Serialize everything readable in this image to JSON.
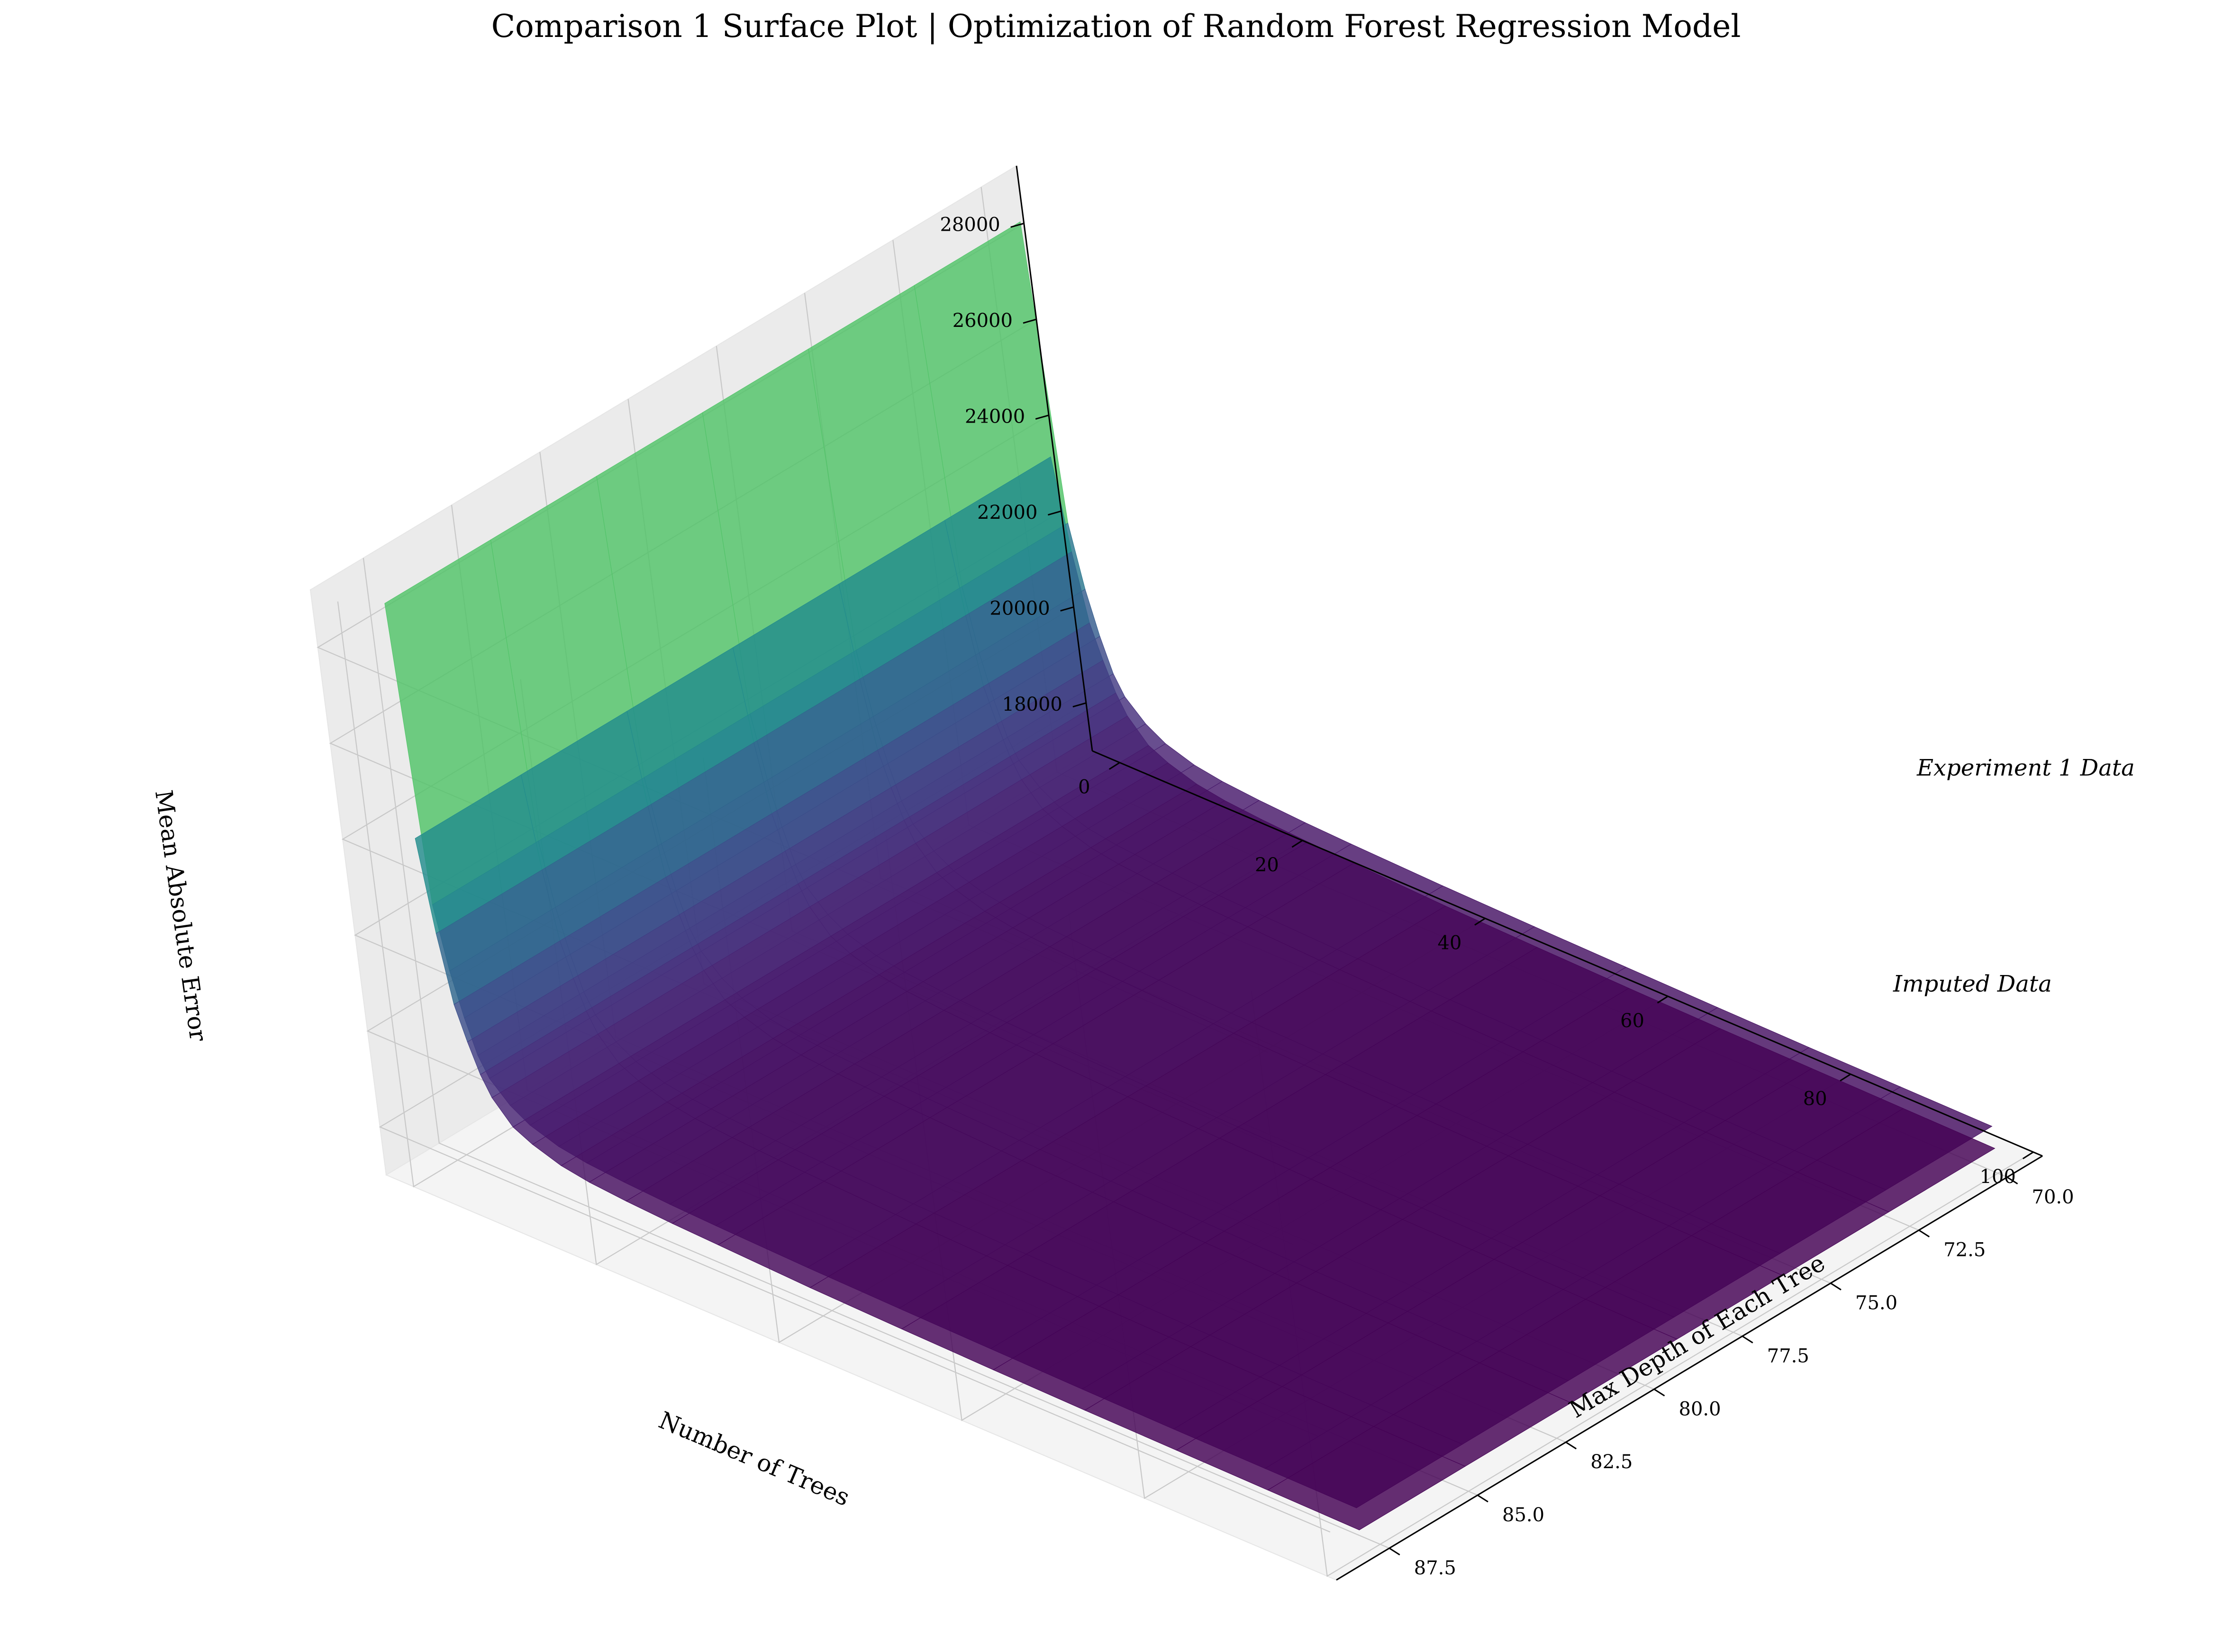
{
  "chart_data": {
    "type": "surface3d",
    "title": "Comparison 1 Surface Plot | Optimization of Random Forest Regression Model",
    "xlabel": "Number of Trees",
    "ylabel": "Max Depth of Each Tree",
    "zlabel": "Mean Absolute Error",
    "xlim": [
      -3,
      101
    ],
    "ylim": [
      69,
      89
    ],
    "zlim": [
      17000,
      29200
    ],
    "x_ticks": [
      "0",
      "20",
      "40",
      "60",
      "80",
      "100"
    ],
    "y_ticks": [
      "70.0",
      "72.5",
      "75.0",
      "77.5",
      "80.0",
      "82.5",
      "85.0",
      "87.5"
    ],
    "z_ticks": [
      "18000",
      "20000",
      "22000",
      "24000",
      "26000",
      "28000"
    ],
    "x_tick_values": [
      0,
      20,
      40,
      60,
      80,
      100
    ],
    "y_tick_values": [
      70,
      72.5,
      75,
      77.5,
      80,
      82.5,
      85,
      87.5
    ],
    "z_tick_values": [
      18000,
      20000,
      22000,
      24000,
      26000,
      28000
    ],
    "colormap": "viridis",
    "grid": true,
    "series": [
      {
        "name": "Experiment 1 Data",
        "trees": [
          1,
          2,
          3,
          4,
          5,
          6,
          8,
          10,
          13,
          16,
          20,
          25,
          30,
          40,
          50,
          60,
          70,
          80,
          90,
          100
        ],
        "mae": [
          28800,
          22600,
          21300,
          20400,
          19700,
          19300,
          18900,
          18650,
          18450,
          18350,
          18280,
          18220,
          18180,
          18120,
          18080,
          18050,
          18020,
          18000,
          17990,
          17980
        ],
        "depth_range": [
          70,
          88
        ]
      },
      {
        "name": "Imputed Data",
        "trees": [
          1,
          2,
          3,
          4,
          5,
          6,
          8,
          10,
          13,
          16,
          20,
          25,
          30,
          40,
          50,
          60,
          70,
          80,
          90,
          100
        ],
        "mae": [
          23900,
          22000,
          20600,
          19900,
          19300,
          18900,
          18450,
          18250,
          18050,
          17950,
          17880,
          17820,
          17780,
          17700,
          17650,
          17610,
          17580,
          17560,
          17540,
          17520
        ],
        "depth_range": [
          70,
          88
        ]
      }
    ]
  }
}
